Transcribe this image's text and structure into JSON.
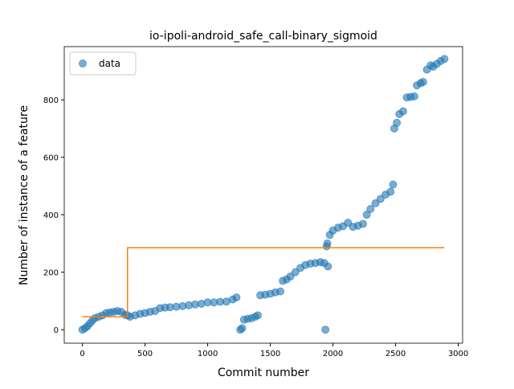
{
  "chart_data": {
    "type": "scatter",
    "title": "io-ipoli-android_safe_call-binary_sigmoid",
    "x_label": "Commit number",
    "y_label": "Number of instance of a feature",
    "xlim": [
      -145,
      3035
    ],
    "ylim": [
      -47,
      985
    ],
    "xticks": [
      0,
      500,
      1000,
      1500,
      2000,
      2500,
      3000
    ],
    "yticks": [
      0,
      200,
      400,
      600,
      800
    ],
    "legend": "upper left",
    "series": [
      {
        "name": "data",
        "color": "#1f77b4",
        "kind": "points",
        "x": [
          0,
          20,
          40,
          60,
          80,
          100,
          130,
          160,
          190,
          220,
          250,
          280,
          310,
          340,
          360,
          380,
          420,
          460,
          500,
          540,
          580,
          620,
          660,
          700,
          750,
          800,
          850,
          900,
          950,
          1000,
          1050,
          1100,
          1150,
          1200,
          1230,
          1260,
          1275,
          1290,
          1320,
          1350,
          1380,
          1400,
          1420,
          1460,
          1500,
          1540,
          1580,
          1600,
          1630,
          1660,
          1700,
          1740,
          1780,
          1820,
          1860,
          1900,
          1930,
          1940,
          1950,
          1955,
          1960,
          1975,
          2000,
          2040,
          2080,
          2120,
          2160,
          2200,
          2240,
          2270,
          2300,
          2340,
          2380,
          2420,
          2460,
          2480,
          2490,
          2510,
          2530,
          2560,
          2590,
          2620,
          2650,
          2670,
          2700,
          2720,
          2750,
          2780,
          2800,
          2830,
          2860,
          2890
        ],
        "values": [
          0,
          5,
          12,
          22,
          32,
          40,
          45,
          50,
          58,
          60,
          62,
          65,
          62,
          52,
          50,
          45,
          50,
          55,
          58,
          62,
          65,
          75,
          77,
          78,
          80,
          82,
          85,
          88,
          90,
          95,
          95,
          97,
          98,
          105,
          112,
          0,
          5,
          35,
          38,
          40,
          45,
          50,
          120,
          122,
          125,
          130,
          133,
          170,
          175,
          185,
          200,
          215,
          225,
          230,
          232,
          235,
          232,
          0,
          290,
          300,
          220,
          330,
          345,
          355,
          360,
          372,
          358,
          362,
          368,
          400,
          420,
          440,
          455,
          470,
          480,
          505,
          700,
          720,
          750,
          760,
          808,
          810,
          812,
          850,
          858,
          862,
          905,
          920,
          915,
          925,
          935,
          942
        ]
      },
      {
        "color": "#ff7f0e",
        "kind": "line",
        "x": [
          0,
          360,
          360,
          2890
        ],
        "values": [
          45,
          45,
          285,
          285
        ]
      }
    ]
  }
}
